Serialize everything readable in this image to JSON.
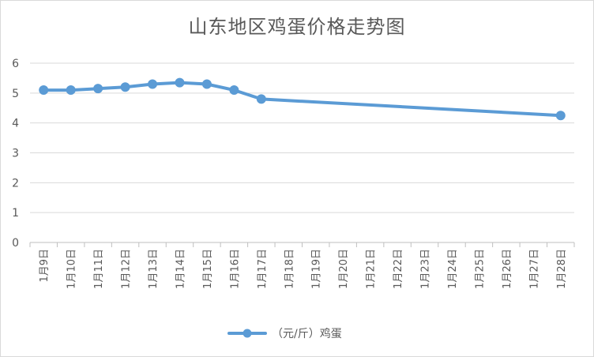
{
  "chart_data": {
    "type": "line",
    "title": "山东地区鸡蛋价格走势图",
    "xlabel": "",
    "ylabel": "",
    "categories": [
      "1月9日",
      "1月10日",
      "1月11日",
      "1月12日",
      "1月13日",
      "1月14日",
      "1月15日",
      "1月16日",
      "1月17日",
      "1月18日",
      "1月19日",
      "1月20日",
      "1月21日",
      "1月22日",
      "1月23日",
      "1月24日",
      "1月25日",
      "1月26日",
      "1月27日",
      "1月28日"
    ],
    "series": [
      {
        "name": "（元/斤）鸡蛋",
        "color": "#5b9bd5",
        "values": [
          5.1,
          5.1,
          5.15,
          5.2,
          5.3,
          5.35,
          5.3,
          5.1,
          4.8,
          null,
          null,
          null,
          null,
          null,
          null,
          null,
          null,
          null,
          null,
          4.25
        ]
      }
    ],
    "ylim": [
      0,
      6
    ],
    "yticks": [
      "0",
      "1",
      "2",
      "3",
      "4",
      "5",
      "6"
    ],
    "grid": true,
    "legend": "bottom"
  }
}
